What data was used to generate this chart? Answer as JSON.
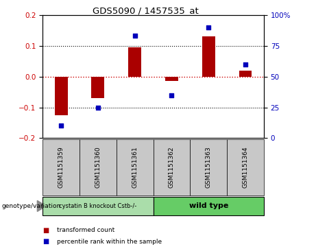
{
  "title": "GDS5090 / 1457535_at",
  "categories": [
    "GSM1151359",
    "GSM1151360",
    "GSM1151361",
    "GSM1151362",
    "GSM1151363",
    "GSM1151364"
  ],
  "bar_values": [
    -0.125,
    -0.07,
    0.095,
    -0.015,
    0.13,
    0.02
  ],
  "scatter_pct": [
    10,
    25,
    83,
    35,
    90,
    60
  ],
  "ylim_left": [
    -0.2,
    0.2
  ],
  "ylim_right": [
    0,
    100
  ],
  "yticks_left": [
    -0.2,
    -0.1,
    0.0,
    0.1,
    0.2
  ],
  "yticks_right": [
    0,
    25,
    50,
    75,
    100
  ],
  "ytick_labels_right": [
    "0",
    "25",
    "50",
    "75",
    "100%"
  ],
  "bar_color": "#aa0000",
  "scatter_color": "#0000bb",
  "hline_color": "#cc0000",
  "group1_label": "cystatin B knockout Cstb-/-",
  "group2_label": "wild type",
  "group1_color": "#aaddaa",
  "group2_color": "#66cc66",
  "legend_label1": "transformed count",
  "legend_label2": "percentile rank within the sample",
  "genotype_label": "genotype/variation",
  "bg_color": "#ffffff",
  "plot_bg": "#ffffff",
  "tick_dotline_vals": [
    -0.1,
    0.0,
    0.1
  ],
  "bar_width": 0.35
}
